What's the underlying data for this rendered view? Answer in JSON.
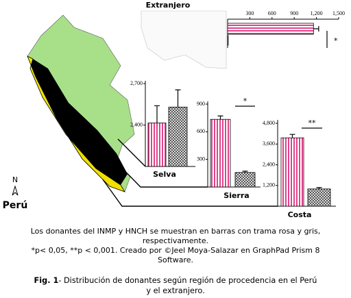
{
  "chart_data": [
    {
      "type": "bar",
      "orientation": "horizontal",
      "title": "Extranjero",
      "xlim": [
        0,
        1500
      ],
      "xticks": [
        300,
        600,
        900,
        {
          "value": 1200,
          "label": "1,200"
        },
        {
          "value": 1500,
          "label": "1,500"
        }
      ],
      "series": [
        {
          "color": "#e0428c",
          "pattern": "stripes",
          "values": [
            1160
          ],
          "errors": [
            70
          ]
        },
        {
          "color": "#555555",
          "pattern": "checks",
          "values": [
            8
          ]
        }
      ],
      "annotation": "*"
    },
    {
      "type": "bar",
      "title": "Selva",
      "ylim": [
        2100,
        2720
      ],
      "yticks": [
        {
          "value": 2400,
          "label": "2,400"
        },
        {
          "value": 2700,
          "label": "2,700"
        }
      ],
      "series": [
        {
          "color": "#e0428c",
          "pattern": "stripes",
          "values": [
            2415
          ],
          "errors": [
            125
          ]
        },
        {
          "color": "#555555",
          "pattern": "checks",
          "values": [
            2530
          ],
          "errors": [
            125
          ]
        }
      ]
    },
    {
      "type": "bar",
      "title": "Sierra",
      "ylim": [
        0,
        930
      ],
      "yticks": [
        300,
        600,
        900
      ],
      "series": [
        {
          "color": "#e0428c",
          "pattern": "stripes",
          "values": [
            735
          ],
          "errors": [
            37
          ]
        },
        {
          "color": "#555555",
          "pattern": "checks",
          "values": [
            158
          ],
          "errors": [
            14
          ]
        }
      ],
      "annotation": "*"
    },
    {
      "type": "bar",
      "title": "Costa",
      "ylim": [
        0,
        5000
      ],
      "yticks": [
        {
          "value": 1200,
          "label": "1,200"
        },
        {
          "value": 2400,
          "label": "2,400"
        },
        {
          "value": 3600,
          "label": "3,600"
        },
        {
          "value": 4800,
          "label": "4,800"
        }
      ],
      "series": [
        {
          "color": "#e0428c",
          "pattern": "stripes",
          "values": [
            3960
          ],
          "errors": [
            200
          ]
        },
        {
          "color": "#555555",
          "pattern": "checks",
          "values": [
            1000
          ],
          "errors": [
            80
          ]
        }
      ],
      "annotation": "**"
    }
  ],
  "map": {
    "label": "Perú",
    "north": "N"
  },
  "caption": [
    "Los donantes del INMP y HNCH se muestran en barras con trama rosa y gris,",
    "respectivamente.",
    "*p< 0,05, **p < 0,001. Creado por ©Jeel Moya-Salazar en GraphPad Prism 8",
    "Software."
  ],
  "figure_caption": {
    "label": "Fig. 1",
    "text": "- Distribución de donantes según región de procedencia en el Perú",
    "text2": "y el extranjero."
  }
}
